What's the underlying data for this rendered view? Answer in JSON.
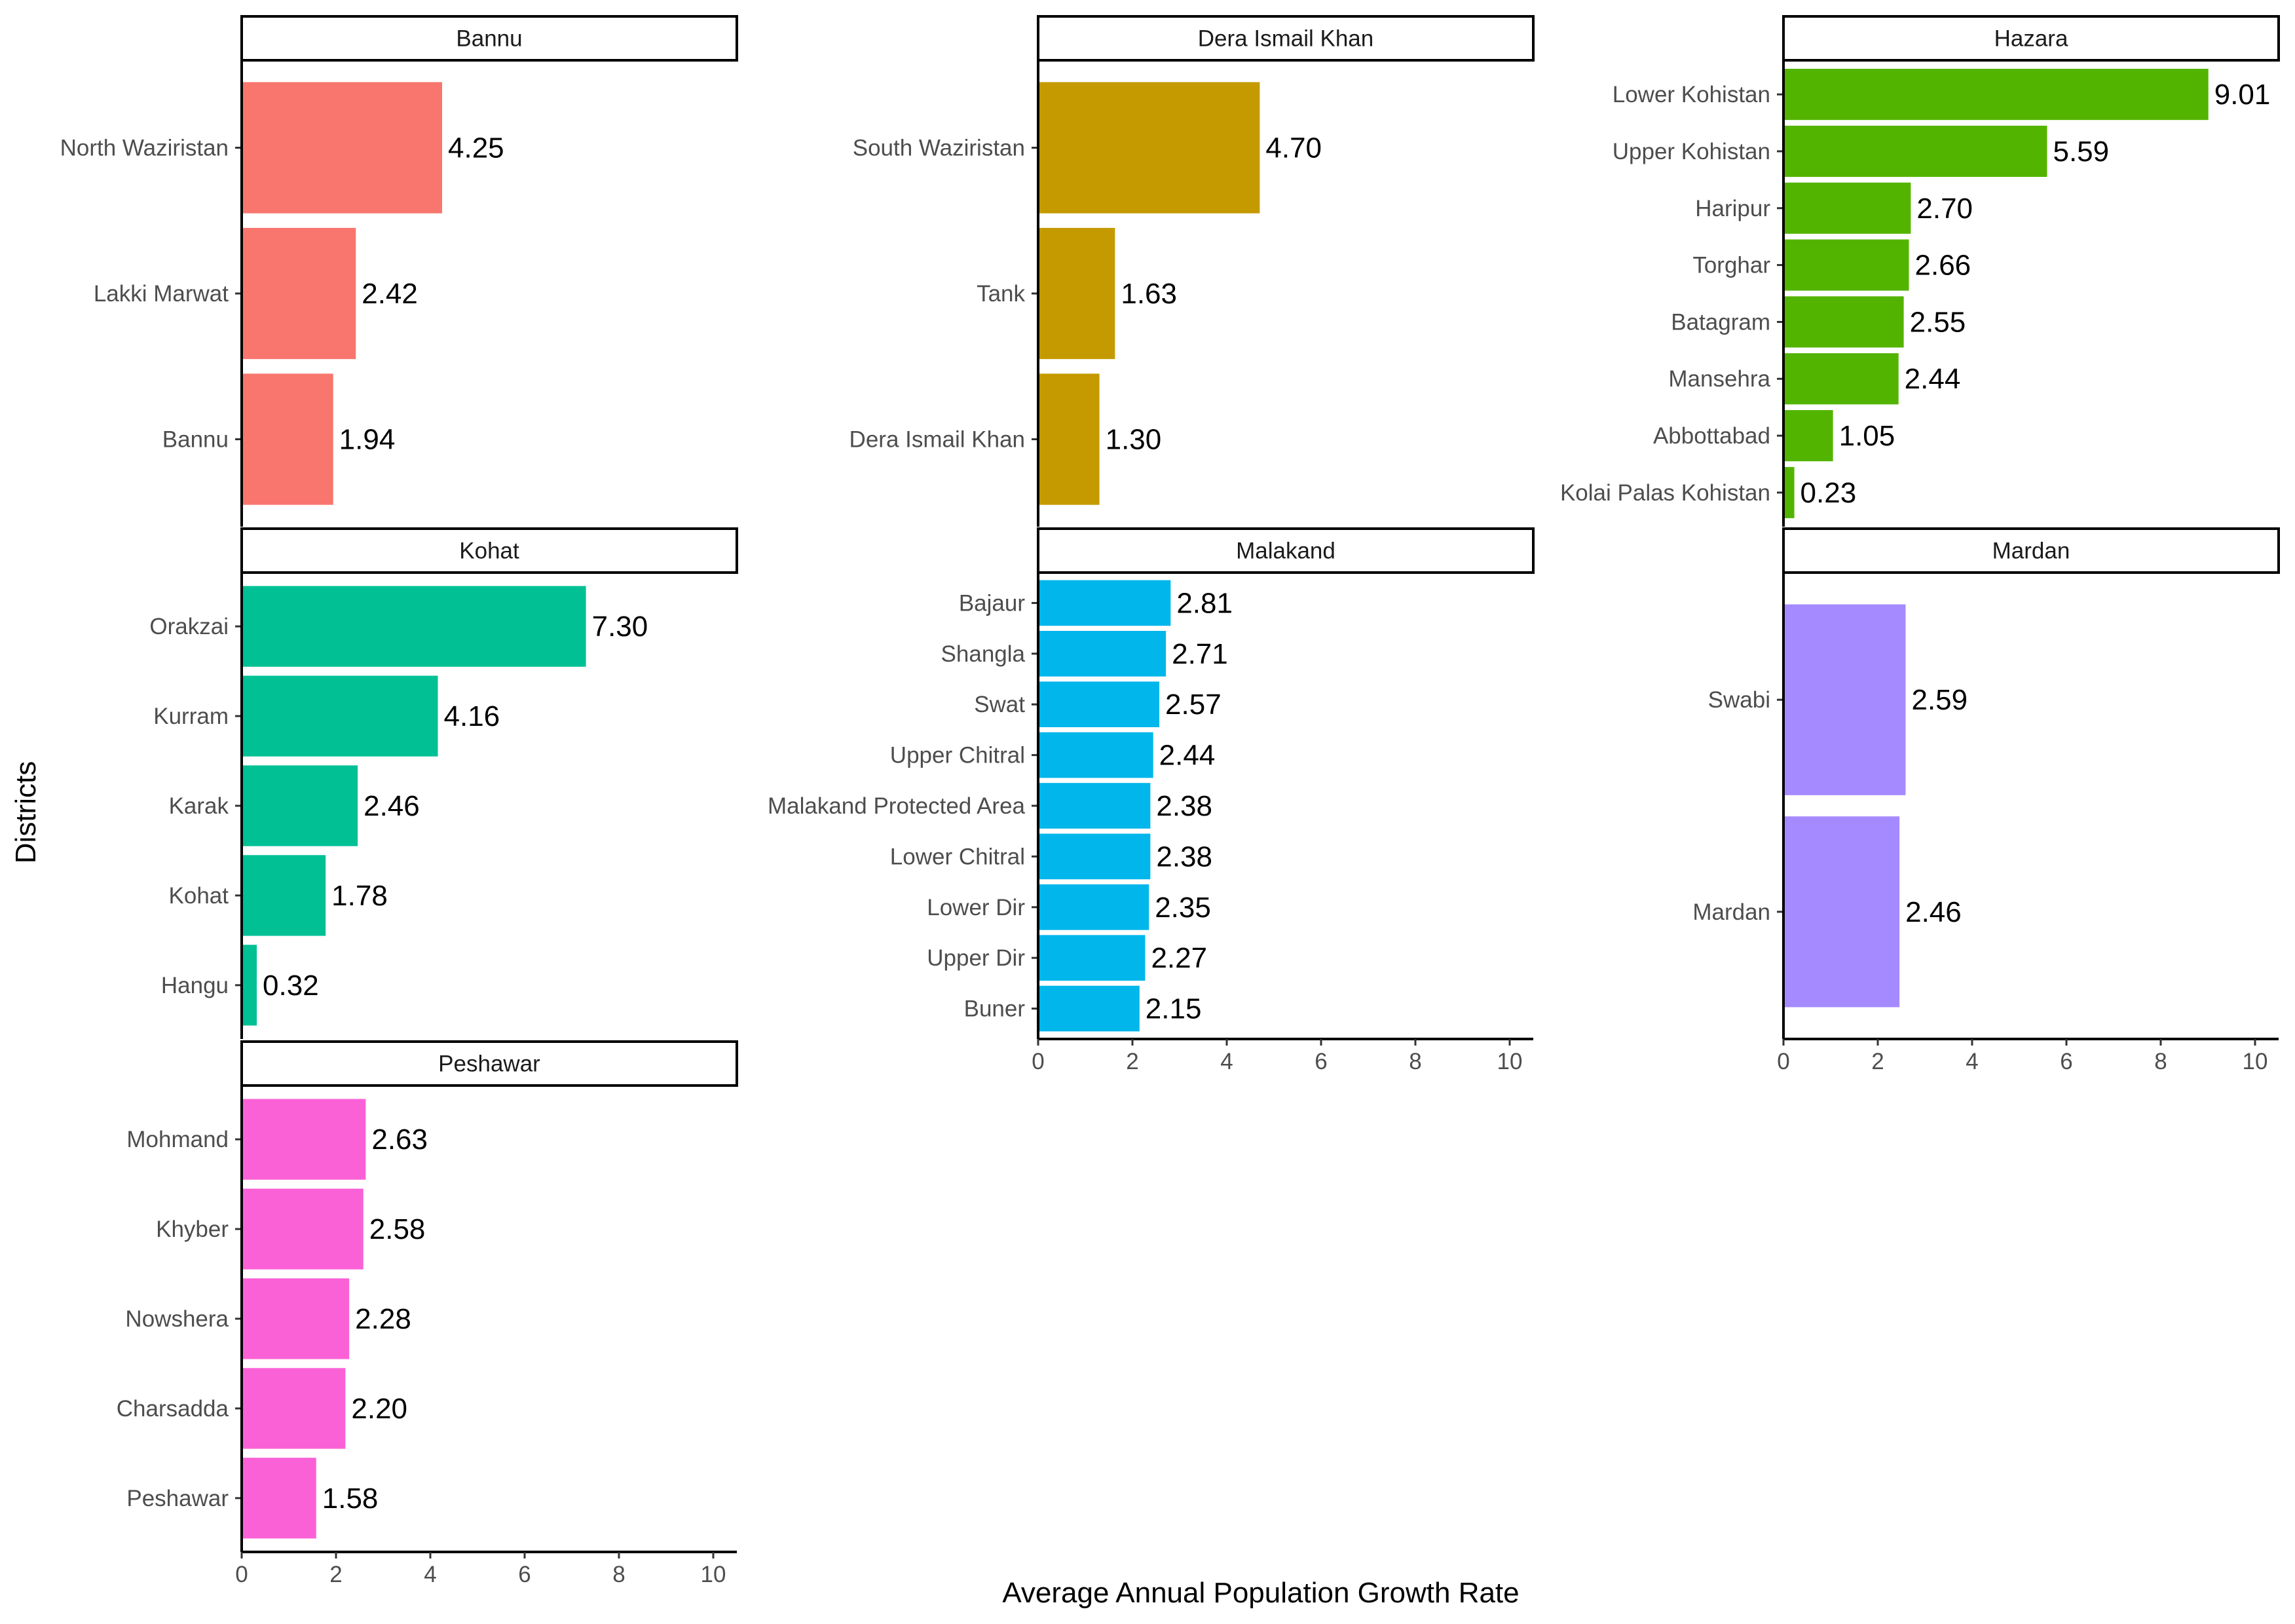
{
  "chart_data": {
    "type": "bar",
    "orientation": "horizontal",
    "xlabel": "Average Annual Population Growth Rate",
    "ylabel": "Districts",
    "xlim": [
      0,
      10.5
    ],
    "xticks": [
      0,
      2,
      4,
      6,
      8,
      10
    ],
    "grid": false,
    "legend": "none",
    "facets": [
      {
        "name": "Bannu",
        "color": "#F8766D",
        "categories": [
          "North Waziristan",
          "Lakki Marwat",
          "Bannu"
        ],
        "values": [
          4.25,
          2.42,
          1.94
        ],
        "value_labels": [
          "4.25",
          "2.42",
          "1.94"
        ]
      },
      {
        "name": "Dera Ismail Khan",
        "color": "#C49A00",
        "categories": [
          "South Waziristan",
          "Tank",
          "Dera Ismail Khan"
        ],
        "values": [
          4.7,
          1.63,
          1.3
        ],
        "value_labels": [
          "4.70",
          "1.63",
          "1.30"
        ]
      },
      {
        "name": "Hazara",
        "color": "#53B400",
        "categories": [
          "Lower Kohistan",
          "Upper Kohistan",
          "Haripur",
          "Torghar",
          "Batagram",
          "Mansehra",
          "Abbottabad",
          "Kolai Palas Kohistan"
        ],
        "values": [
          9.01,
          5.59,
          2.7,
          2.66,
          2.55,
          2.44,
          1.05,
          0.23
        ],
        "value_labels": [
          "9.01",
          "5.59",
          "2.70",
          "2.66",
          "2.55",
          "2.44",
          "1.05",
          "0.23"
        ]
      },
      {
        "name": "Kohat",
        "color": "#00C094",
        "categories": [
          "Orakzai",
          "Kurram",
          "Karak",
          "Kohat",
          "Hangu"
        ],
        "values": [
          7.3,
          4.16,
          2.46,
          1.78,
          0.32
        ],
        "value_labels": [
          "7.30",
          "4.16",
          "2.46",
          "1.78",
          "0.32"
        ]
      },
      {
        "name": "Malakand",
        "color": "#00B6EB",
        "categories": [
          "Bajaur",
          "Shangla",
          "Swat",
          "Upper Chitral",
          "Malakand Protected Area",
          "Lower Chitral",
          "Lower Dir",
          "Upper Dir",
          "Buner"
        ],
        "values": [
          2.81,
          2.71,
          2.57,
          2.44,
          2.38,
          2.38,
          2.35,
          2.27,
          2.15
        ],
        "value_labels": [
          "2.81",
          "2.71",
          "2.57",
          "2.44",
          "2.38",
          "2.38",
          "2.35",
          "2.27",
          "2.15"
        ]
      },
      {
        "name": "Mardan",
        "color": "#A58AFF",
        "categories": [
          "Swabi",
          "Mardan"
        ],
        "values": [
          2.59,
          2.46
        ],
        "value_labels": [
          "2.59",
          "2.46"
        ]
      },
      {
        "name": "Peshawar",
        "color": "#FB61D7",
        "categories": [
          "Mohmand",
          "Khyber",
          "Nowshera",
          "Charsadda",
          "Peshawar"
        ],
        "values": [
          2.63,
          2.58,
          2.28,
          2.2,
          1.58
        ],
        "value_labels": [
          "2.63",
          "2.58",
          "2.28",
          "2.20",
          "1.58"
        ]
      }
    ]
  }
}
